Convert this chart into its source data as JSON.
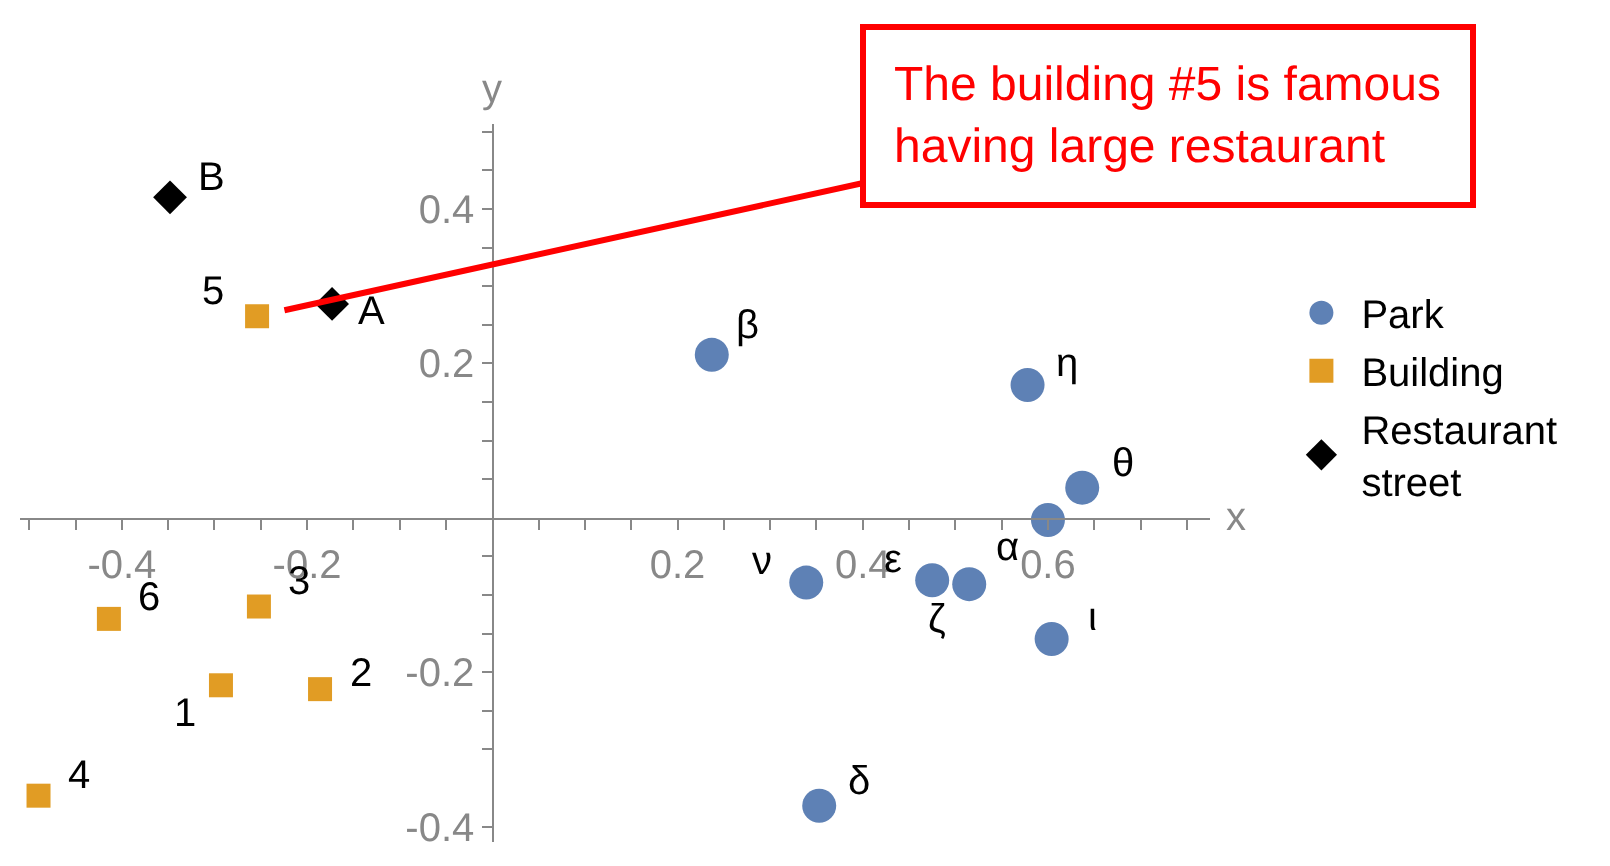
{
  "chart_data": {
    "type": "scatter",
    "xlabel": "x",
    "ylabel": "y",
    "xlim": [
      -0.51,
      0.775
    ],
    "ylim": [
      -0.42,
      0.51
    ],
    "xticks": [
      {
        "value": -0.5,
        "label": null
      },
      {
        "value": -0.45,
        "label": null
      },
      -0.4,
      {
        "value": -0.35,
        "label": null
      },
      {
        "value": -0.3,
        "label": null
      },
      {
        "value": -0.25,
        "label": null
      },
      -0.2,
      {
        "value": -0.15,
        "label": null
      },
      {
        "value": -0.1,
        "label": null
      },
      {
        "value": -0.05,
        "label": null
      },
      {
        "value": 0.05,
        "label": null
      },
      {
        "value": 0.1,
        "label": null
      },
      {
        "value": 0.15,
        "label": null
      },
      0.2,
      {
        "value": 0.25,
        "label": null
      },
      {
        "value": 0.3,
        "label": null
      },
      {
        "value": 0.35,
        "label": null
      },
      0.4,
      {
        "value": 0.45,
        "label": null
      },
      {
        "value": 0.5,
        "label": null
      },
      {
        "value": 0.55,
        "label": null
      },
      0.6,
      {
        "value": 0.65,
        "label": null
      },
      {
        "value": 0.7,
        "label": null
      },
      {
        "value": 0.75,
        "label": null
      }
    ],
    "yticks": [
      -0.4,
      {
        "value": -0.3,
        "label": null
      },
      {
        "value": -0.25,
        "label": null
      },
      -0.2,
      {
        "value": -0.15,
        "label": null
      },
      {
        "value": -0.1,
        "label": null
      },
      {
        "value": -0.05,
        "label": null
      },
      {
        "value": 0.05,
        "label": null
      },
      {
        "value": 0.1,
        "label": null
      },
      {
        "value": 0.15,
        "label": null
      },
      0.2,
      {
        "value": 0.25,
        "label": null
      },
      {
        "value": 0.3,
        "label": null
      },
      {
        "value": 0.35,
        "label": null
      },
      0.4,
      {
        "value": 0.45,
        "label": null
      },
      {
        "value": 0.5,
        "label": null
      }
    ],
    "grid": false,
    "legend": "right",
    "series": [
      {
        "name": "Park",
        "color": "#5e81b5",
        "marker": "circle",
        "x": [
          0.237,
          0.578,
          0.637,
          0.6,
          0.339,
          0.475,
          0.515,
          0.604,
          0.353
        ],
        "values": [
          0.211,
          0.172,
          0.039,
          -0.003,
          -0.084,
          -0.081,
          -0.086,
          -0.157,
          -0.373
        ]
      },
      {
        "name": "Building",
        "color": "#e19c24",
        "marker": "square",
        "x": [
          -0.293,
          -0.186,
          -0.252,
          -0.49,
          -0.254,
          -0.414
        ],
        "values": [
          -0.217,
          -0.222,
          -0.115,
          -0.36,
          0.261,
          -0.131
        ]
      },
      {
        "name": "Restaurant street",
        "color": "#000000",
        "marker": "diamond",
        "x": [
          -0.173,
          -0.348
        ],
        "values": [
          0.277,
          0.415
        ]
      }
    ],
    "annotations": [
      {
        "text": "The building #5 is famous\nhaving large restaurant",
        "x": -0.254,
        "y": 0.261
      },
      {
        "text": "β",
        "x": 0.237,
        "y": 0.211
      },
      {
        "text": "η",
        "x": 0.578,
        "y": 0.172
      },
      {
        "text": "θ",
        "x": 0.637,
        "y": 0.039
      },
      {
        "text": "α",
        "x": 0.6,
        "y": -0.003
      },
      {
        "text": "ν",
        "x": 0.339,
        "y": -0.084
      },
      {
        "text": "ε",
        "x": 0.475,
        "y": -0.081
      },
      {
        "text": "ζ",
        "x": 0.515,
        "y": -0.086
      },
      {
        "text": "ι",
        "x": 0.604,
        "y": -0.157
      },
      {
        "text": "δ",
        "x": 0.353,
        "y": -0.373
      },
      {
        "text": "1",
        "x": -0.293,
        "y": -0.217
      },
      {
        "text": "2",
        "x": -0.186,
        "y": -0.222
      },
      {
        "text": "3",
        "x": -0.252,
        "y": -0.115
      },
      {
        "text": "4",
        "x": -0.49,
        "y": -0.36
      },
      {
        "text": "5",
        "x": -0.254,
        "y": 0.261
      },
      {
        "text": "6",
        "x": -0.414,
        "y": -0.131
      },
      {
        "text": "A",
        "x": -0.173,
        "y": 0.277
      },
      {
        "text": "B",
        "x": -0.348,
        "y": 0.415
      }
    ]
  }
}
